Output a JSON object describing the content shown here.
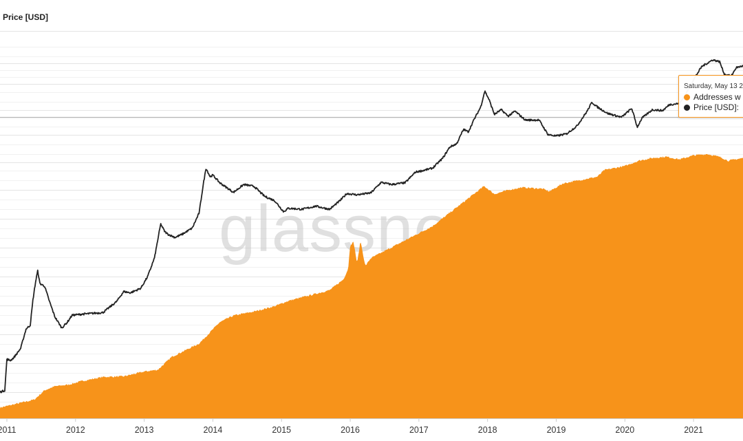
{
  "chart_data": {
    "type": "area",
    "title": "",
    "left_axis_label": "Price [USD]",
    "watermark": "glassnode",
    "x_tick_labels": [
      "2011",
      "2012",
      "2013",
      "2014",
      "2015",
      "2016",
      "2017",
      "2018",
      "2019",
      "2020",
      "2021"
    ],
    "xlim": [
      2010.9,
      2021.72
    ],
    "log_scale_left": true,
    "grid": true,
    "colors": {
      "addresses": "#f7931a",
      "price": "#222222",
      "grid": "#e6e6e6"
    },
    "series": [
      {
        "name": "Addresses w",
        "type": "area",
        "relative_level_0_to_1": [
          [
            2010.9,
            0.04
          ],
          [
            2011.4,
            0.07
          ],
          [
            2011.55,
            0.105
          ],
          [
            2011.7,
            0.12
          ],
          [
            2011.9,
            0.126
          ],
          [
            2012.1,
            0.14
          ],
          [
            2012.4,
            0.155
          ],
          [
            2012.7,
            0.157
          ],
          [
            2013.0,
            0.175
          ],
          [
            2013.2,
            0.182
          ],
          [
            2013.4,
            0.23
          ],
          [
            2013.6,
            0.255
          ],
          [
            2013.8,
            0.28
          ],
          [
            2013.95,
            0.32
          ],
          [
            2014.1,
            0.36
          ],
          [
            2014.3,
            0.385
          ],
          [
            2014.6,
            0.4
          ],
          [
            2014.9,
            0.42
          ],
          [
            2015.1,
            0.44
          ],
          [
            2015.4,
            0.46
          ],
          [
            2015.7,
            0.48
          ],
          [
            2015.9,
            0.52
          ],
          [
            2015.97,
            0.56
          ],
          [
            2016.0,
            0.65
          ],
          [
            2016.05,
            0.66
          ],
          [
            2016.1,
            0.58
          ],
          [
            2016.15,
            0.665
          ],
          [
            2016.22,
            0.57
          ],
          [
            2016.3,
            0.6
          ],
          [
            2016.6,
            0.64
          ],
          [
            2016.9,
            0.68
          ],
          [
            2017.2,
            0.72
          ],
          [
            2017.5,
            0.78
          ],
          [
            2017.7,
            0.82
          ],
          [
            2017.85,
            0.85
          ],
          [
            2017.95,
            0.87
          ],
          [
            2018.1,
            0.84
          ],
          [
            2018.3,
            0.855
          ],
          [
            2018.5,
            0.865
          ],
          [
            2018.8,
            0.86
          ],
          [
            2018.9,
            0.85
          ],
          [
            2019.1,
            0.88
          ],
          [
            2019.4,
            0.895
          ],
          [
            2019.6,
            0.905
          ],
          [
            2019.7,
            0.93
          ],
          [
            2019.8,
            0.935
          ],
          [
            2020.0,
            0.945
          ],
          [
            2020.2,
            0.965
          ],
          [
            2020.4,
            0.975
          ],
          [
            2020.6,
            0.98
          ],
          [
            2020.8,
            0.97
          ],
          [
            2021.0,
            0.985
          ],
          [
            2021.2,
            0.99
          ],
          [
            2021.4,
            0.978
          ],
          [
            2021.5,
            0.965
          ],
          [
            2021.72,
            0.975
          ]
        ]
      },
      {
        "name": "Price [USD]",
        "type": "line",
        "values_usd": [
          [
            2010.9,
            0.28
          ],
          [
            2010.97,
            0.3
          ],
          [
            2011.0,
            0.95
          ],
          [
            2011.05,
            0.9
          ],
          [
            2011.1,
            1.0
          ],
          [
            2011.2,
            1.4
          ],
          [
            2011.28,
            2.9
          ],
          [
            2011.34,
            3.3
          ],
          [
            2011.38,
            8.5
          ],
          [
            2011.42,
            17.0
          ],
          [
            2011.45,
            25.0
          ],
          [
            2011.48,
            15.5
          ],
          [
            2011.55,
            14.0
          ],
          [
            2011.62,
            8.0
          ],
          [
            2011.7,
            4.5
          ],
          [
            2011.8,
            3.0
          ],
          [
            2011.88,
            3.7
          ],
          [
            2011.95,
            4.8
          ],
          [
            2012.1,
            5.0
          ],
          [
            2012.4,
            5.3
          ],
          [
            2012.6,
            8.0
          ],
          [
            2012.7,
            11.5
          ],
          [
            2012.8,
            11.0
          ],
          [
            2012.95,
            13.0
          ],
          [
            2013.05,
            20.0
          ],
          [
            2013.15,
            40.0
          ],
          [
            2013.24,
            140.0
          ],
          [
            2013.3,
            105.0
          ],
          [
            2013.35,
            95.0
          ],
          [
            2013.45,
            85.0
          ],
          [
            2013.55,
            95.0
          ],
          [
            2013.7,
            120.0
          ],
          [
            2013.8,
            210.0
          ],
          [
            2013.86,
            600.0
          ],
          [
            2013.9,
            1100.0
          ],
          [
            2013.96,
            800.0
          ],
          [
            2014.0,
            850.0
          ],
          [
            2014.1,
            640.0
          ],
          [
            2014.3,
            450.0
          ],
          [
            2014.45,
            600.0
          ],
          [
            2014.6,
            560.0
          ],
          [
            2014.75,
            390.0
          ],
          [
            2014.9,
            330.0
          ],
          [
            2015.03,
            220.0
          ],
          [
            2015.1,
            250.0
          ],
          [
            2015.3,
            240.0
          ],
          [
            2015.5,
            270.0
          ],
          [
            2015.7,
            240.0
          ],
          [
            2015.85,
            330.0
          ],
          [
            2015.95,
            430.0
          ],
          [
            2016.1,
            410.0
          ],
          [
            2016.3,
            440.0
          ],
          [
            2016.45,
            650.0
          ],
          [
            2016.6,
            600.0
          ],
          [
            2016.8,
            640.0
          ],
          [
            2016.95,
            950.0
          ],
          [
            2017.05,
            1000.0
          ],
          [
            2017.2,
            1100.0
          ],
          [
            2017.35,
            1600.0
          ],
          [
            2017.45,
            2400.0
          ],
          [
            2017.55,
            2700.0
          ],
          [
            2017.65,
            4600.0
          ],
          [
            2017.72,
            4200.0
          ],
          [
            2017.8,
            6500.0
          ],
          [
            2017.9,
            10500.0
          ],
          [
            2017.96,
            19000.0
          ],
          [
            2018.02,
            14000.0
          ],
          [
            2018.1,
            8000.0
          ],
          [
            2018.2,
            9500.0
          ],
          [
            2018.3,
            7500.0
          ],
          [
            2018.4,
            9000.0
          ],
          [
            2018.55,
            6500.0
          ],
          [
            2018.75,
            6500.0
          ],
          [
            2018.88,
            3800.0
          ],
          [
            2019.0,
            3600.0
          ],
          [
            2019.15,
            3900.0
          ],
          [
            2019.3,
            5200.0
          ],
          [
            2019.45,
            9000.0
          ],
          [
            2019.52,
            12500.0
          ],
          [
            2019.6,
            10500.0
          ],
          [
            2019.75,
            8300.0
          ],
          [
            2019.95,
            7200.0
          ],
          [
            2020.1,
            10000.0
          ],
          [
            2020.18,
            5000.0
          ],
          [
            2020.25,
            7000.0
          ],
          [
            2020.4,
            9500.0
          ],
          [
            2020.55,
            9200.0
          ],
          [
            2020.65,
            11500.0
          ],
          [
            2020.8,
            12000.0
          ],
          [
            2020.9,
            18000.0
          ],
          [
            2021.0,
            29000.0
          ],
          [
            2021.12,
            47000.0
          ],
          [
            2021.28,
            60000.0
          ],
          [
            2021.38,
            56000.0
          ],
          [
            2021.45,
            35000.0
          ],
          [
            2021.55,
            33000.0
          ],
          [
            2021.62,
            45000.0
          ],
          [
            2021.72,
            48000.0
          ]
        ]
      }
    ],
    "tooltip": {
      "date": "Saturday, May 13 2",
      "rows": [
        {
          "label": "Addresses w",
          "color": "#f7931a"
        },
        {
          "label": "Price [USD]:",
          "color": "#222222"
        }
      ]
    }
  }
}
